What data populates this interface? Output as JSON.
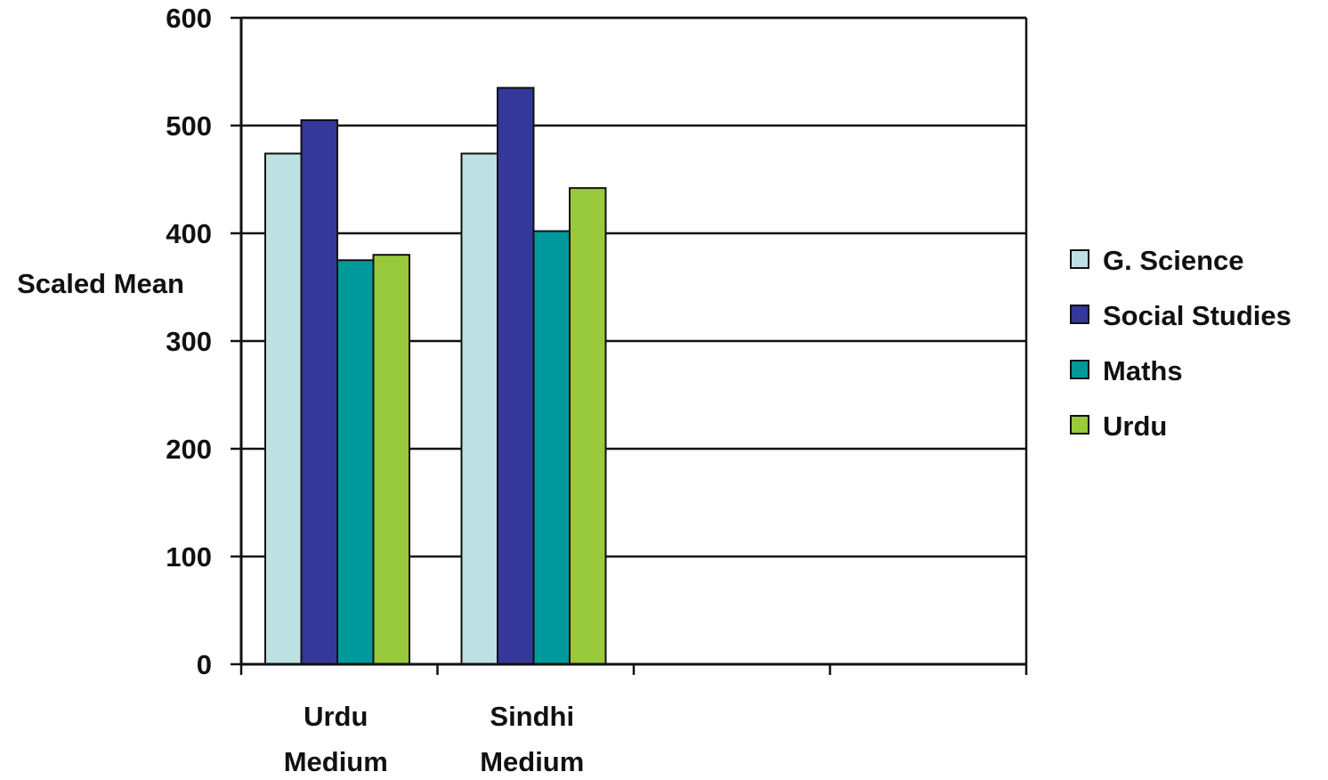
{
  "chart_data": {
    "type": "bar",
    "categories": [
      "Urdu\nMedium",
      "Sindhi\nMedium",
      "",
      ""
    ],
    "series": [
      {
        "name": "G. Science",
        "color": "#bde1e3",
        "values": [
          474,
          474,
          null,
          null
        ]
      },
      {
        "name": "Social Studies",
        "color": "#35379a",
        "values": [
          505,
          535,
          null,
          null
        ]
      },
      {
        "name": "Maths",
        "color": "#00999b",
        "values": [
          375,
          402,
          null,
          null
        ]
      },
      {
        "name": "Urdu",
        "color": "#99c93c",
        "values": [
          380,
          442,
          null,
          null
        ]
      }
    ],
    "title": "",
    "xlabel": "",
    "ylabel": "Scaled Mean",
    "ylim": [
      0,
      600
    ],
    "yticks": [
      0,
      100,
      200,
      300,
      400,
      500,
      600
    ],
    "grid": true,
    "legend_position": "right"
  }
}
